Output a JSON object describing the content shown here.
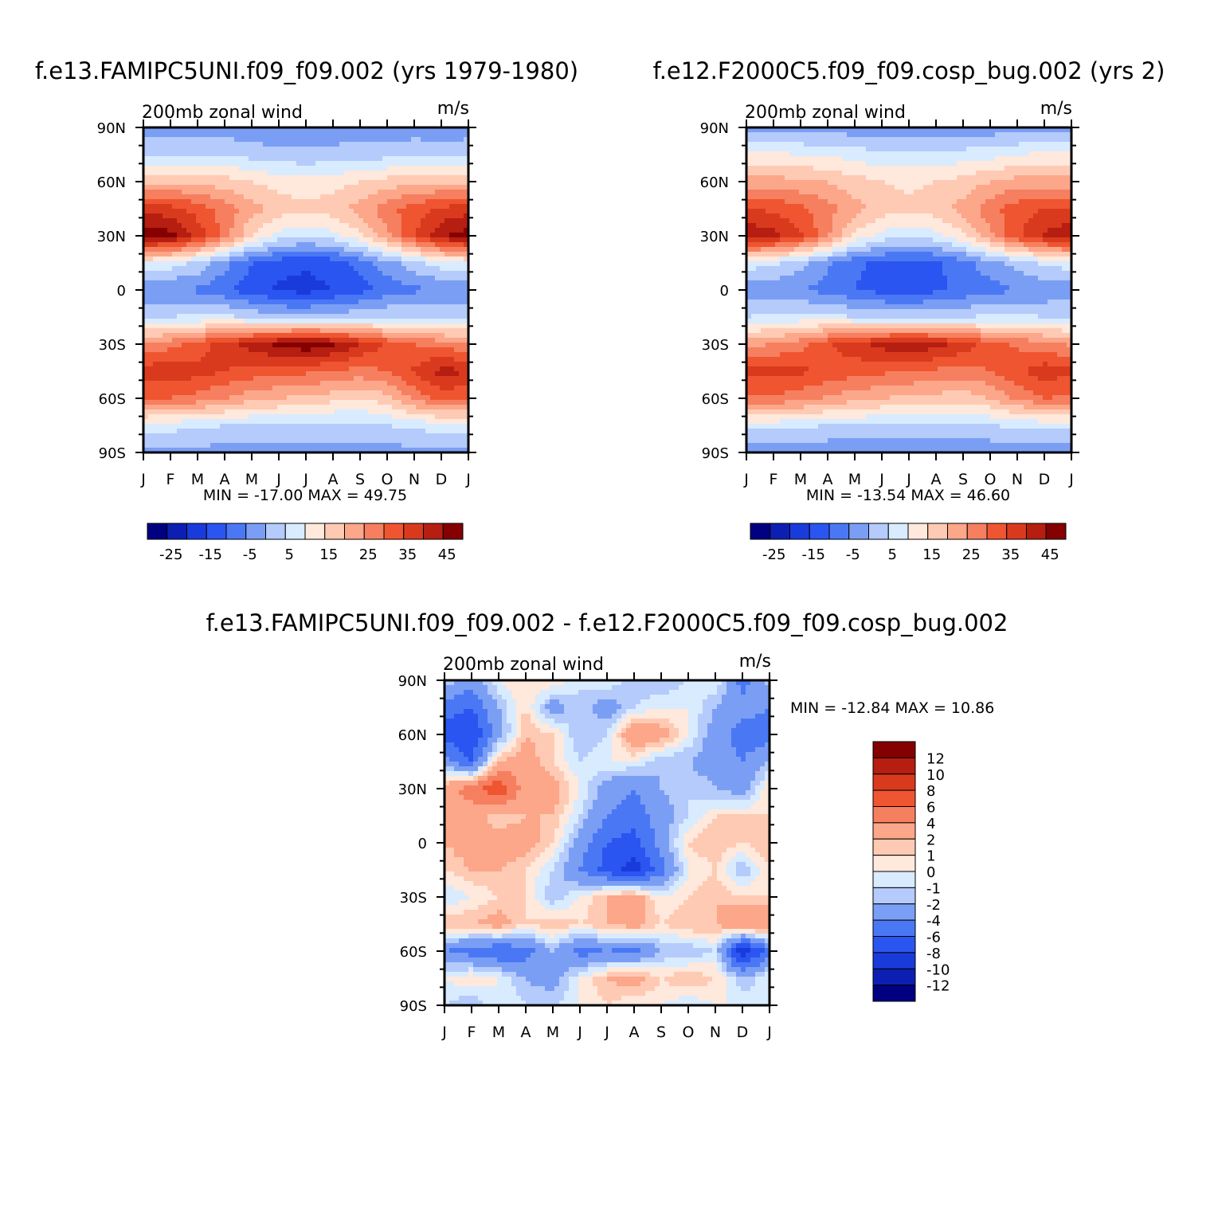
{
  "chart_data": [
    {
      "type": "heatmap",
      "title": "f.e13.FAMIPC5UNI.f09_f09.002 (yrs 1979-1980)",
      "subtitle": "200mb zonal wind",
      "units": "m/s",
      "x_labels": [
        "J",
        "F",
        "M",
        "A",
        "M",
        "J",
        "J",
        "A",
        "S",
        "O",
        "N",
        "D",
        "J"
      ],
      "y_labels": [
        "90N",
        "60N",
        "30N",
        "0",
        "30S",
        "60S",
        "90S"
      ],
      "min_max_text": "MIN = -17.00 MAX = 49.75",
      "color_levels": [
        -30,
        -25,
        -20,
        -15,
        -10,
        -5,
        0,
        5,
        10,
        15,
        20,
        25,
        30,
        35,
        40,
        45,
        50
      ],
      "colorbar_tick_labels": [
        "-25",
        "-15",
        "-5",
        "5",
        "15",
        "25",
        "35",
        "45"
      ],
      "lat": [
        90,
        75,
        60,
        45,
        30,
        15,
        0,
        -15,
        -30,
        -45,
        -60,
        -75,
        -90
      ],
      "month_index": [
        0,
        1,
        2,
        3,
        4,
        5,
        6,
        7,
        8,
        9,
        10,
        11,
        12
      ],
      "values": [
        [
          -3,
          -3,
          -3,
          -3,
          -4,
          -5,
          -4,
          -4,
          -3,
          -3,
          -3,
          -4,
          -3
        ],
        [
          4,
          4,
          5,
          5,
          3,
          2,
          1,
          2,
          3,
          3,
          4,
          4,
          4
        ],
        [
          19,
          19,
          18,
          17,
          15,
          13,
          12,
          13,
          15,
          17,
          18,
          19,
          19
        ],
        [
          38,
          37,
          33,
          28,
          22,
          18,
          16,
          18,
          22,
          28,
          33,
          36,
          38
        ],
        [
          48,
          47,
          38,
          28,
          15,
          8,
          6,
          8,
          14,
          24,
          34,
          44,
          48
        ],
        [
          10,
          8,
          4,
          -3,
          -10,
          -13,
          -14,
          -13,
          -8,
          -2,
          3,
          8,
          10
        ],
        [
          -4,
          -5,
          -6,
          -9,
          -13,
          -16,
          -17,
          -15,
          -12,
          -8,
          -6,
          -5,
          -4
        ],
        [
          4,
          5,
          6,
          6,
          4,
          2,
          2,
          3,
          4,
          5,
          5,
          4,
          4
        ],
        [
          26,
          28,
          32,
          38,
          42,
          47,
          49,
          46,
          40,
          34,
          30,
          28,
          26
        ],
        [
          38,
          38,
          37,
          35,
          33,
          32,
          31,
          30,
          28,
          30,
          36,
          42,
          40
        ],
        [
          30,
          30,
          28,
          25,
          22,
          20,
          19,
          17,
          15,
          18,
          26,
          32,
          30
        ],
        [
          8,
          7,
          6,
          5,
          4,
          4,
          3,
          3,
          4,
          5,
          6,
          8,
          8
        ],
        [
          -2,
          -2,
          -2,
          -2,
          -2,
          -2,
          -2,
          -2,
          -2,
          -2,
          -2,
          -2,
          -2
        ]
      ]
    },
    {
      "type": "heatmap",
      "title": "f.e12.F2000C5.f09_f09.cosp_bug.002 (yrs 2)",
      "subtitle": "200mb zonal wind",
      "units": "m/s",
      "x_labels": [
        "J",
        "F",
        "M",
        "A",
        "M",
        "J",
        "J",
        "A",
        "S",
        "O",
        "N",
        "D",
        "J"
      ],
      "y_labels": [
        "90N",
        "60N",
        "30N",
        "0",
        "30S",
        "60S",
        "90S"
      ],
      "min_max_text": "MIN = -13.54 MAX = 46.60",
      "color_levels": [
        -30,
        -25,
        -20,
        -15,
        -10,
        -5,
        0,
        5,
        10,
        15,
        20,
        25,
        30,
        35,
        40,
        45,
        50
      ],
      "colorbar_tick_labels": [
        "-25",
        "-15",
        "-5",
        "5",
        "15",
        "25",
        "35",
        "45"
      ],
      "lat": [
        90,
        75,
        60,
        45,
        30,
        15,
        0,
        -15,
        -30,
        -45,
        -60,
        -75,
        -90
      ],
      "month_index": [
        0,
        1,
        2,
        3,
        4,
        5,
        6,
        7,
        8,
        9,
        10,
        11,
        12
      ],
      "values": [
        [
          -3,
          -3,
          -3,
          -3,
          -3,
          -3,
          -3,
          -3,
          -3,
          -3,
          -3,
          -3,
          -3
        ],
        [
          11,
          11,
          10,
          9,
          8,
          6,
          6,
          6,
          7,
          8,
          10,
          11,
          11
        ],
        [
          22,
          22,
          21,
          20,
          17,
          15,
          14,
          15,
          17,
          20,
          22,
          22,
          22
        ],
        [
          35,
          34,
          31,
          27,
          22,
          18,
          16,
          18,
          22,
          28,
          33,
          35,
          35
        ],
        [
          44,
          42,
          36,
          26,
          14,
          8,
          6,
          8,
          14,
          24,
          34,
          41,
          44
        ],
        [
          8,
          6,
          2,
          -4,
          -9,
          -11,
          -12,
          -11,
          -7,
          -2,
          2,
          6,
          8
        ],
        [
          -3,
          -4,
          -5,
          -7,
          -10,
          -12,
          -13,
          -11,
          -9,
          -7,
          -5,
          -4,
          -3
        ],
        [
          5,
          6,
          7,
          7,
          5,
          4,
          4,
          4,
          5,
          6,
          6,
          5,
          5
        ],
        [
          24,
          25,
          28,
          34,
          38,
          42,
          44,
          42,
          38,
          32,
          29,
          27,
          24
        ],
        [
          36,
          37,
          36,
          34,
          32,
          31,
          30,
          29,
          28,
          30,
          34,
          38,
          36
        ],
        [
          29,
          29,
          27,
          24,
          22,
          20,
          19,
          18,
          17,
          20,
          26,
          30,
          29
        ],
        [
          7,
          7,
          6,
          5,
          5,
          4,
          4,
          4,
          4,
          5,
          6,
          7,
          7
        ],
        [
          -4,
          -4,
          -4,
          -4,
          -4,
          -4,
          -4,
          -4,
          -4,
          -4,
          -4,
          -4,
          -4
        ]
      ]
    },
    {
      "type": "heatmap",
      "title": "f.e13.FAMIPC5UNI.f09_f09.002 - f.e12.F2000C5.f09_f09.cosp_bug.002",
      "subtitle": "200mb zonal wind",
      "units": "m/s",
      "x_labels": [
        "J",
        "F",
        "M",
        "A",
        "M",
        "J",
        "J",
        "A",
        "S",
        "O",
        "N",
        "D",
        "J"
      ],
      "y_labels": [
        "90N",
        "60N",
        "30N",
        "0",
        "30S",
        "60S",
        "90S"
      ],
      "min_max_text": "MIN = -12.84 MAX = 10.86",
      "color_levels": [
        -14,
        -12,
        -10,
        -8,
        -6,
        -4,
        -2,
        -1,
        0,
        1,
        2,
        4,
        6,
        8,
        10,
        12,
        14
      ],
      "colorbar_tick_labels": [
        "12",
        "10",
        "8",
        "6",
        "4",
        "2",
        "1",
        "0",
        "-1",
        "-2",
        "-4",
        "-6",
        "-8",
        "-10",
        "-12"
      ],
      "lat": [
        90,
        75,
        60,
        45,
        30,
        15,
        0,
        -15,
        -30,
        -45,
        -60,
        -75,
        -90
      ],
      "month_index": [
        0,
        1,
        2,
        3,
        4,
        5,
        6,
        7,
        8,
        9,
        10,
        11,
        12
      ],
      "values": [
        [
          -1,
          -3,
          0,
          1,
          1,
          -1,
          0,
          -2,
          -2,
          -1,
          0,
          -5,
          -1
        ],
        [
          -5,
          -6,
          -2,
          1,
          -3,
          -1,
          -3,
          -1,
          0,
          0,
          -2,
          -3,
          -4
        ],
        [
          -7,
          -8,
          -3,
          2,
          1,
          -2,
          -1,
          4,
          3,
          0,
          -3,
          -5,
          -5
        ],
        [
          -3,
          -6,
          2,
          3,
          1,
          -1,
          0,
          0,
          -2,
          -2,
          -3,
          -4,
          -2
        ],
        [
          3,
          5,
          8,
          3,
          3,
          0,
          -3,
          -4,
          -2,
          -1,
          -2,
          -3,
          1
        ],
        [
          4,
          3,
          1,
          2,
          2,
          -1,
          -4,
          -5,
          -3,
          -1,
          1,
          1,
          1
        ],
        [
          2,
          3,
          3,
          3,
          1,
          -3,
          -6,
          -7,
          -3,
          1,
          2,
          1,
          2
        ],
        [
          1,
          2,
          2,
          1,
          -1,
          -4,
          -7,
          -9,
          -5,
          0,
          1,
          -2,
          1
        ],
        [
          -1,
          0,
          1,
          1,
          -2,
          0,
          2,
          3,
          0,
          1,
          2,
          1,
          1
        ],
        [
          2,
          2,
          3,
          1,
          2,
          1,
          2,
          3,
          1,
          2,
          2,
          4,
          4
        ],
        [
          -4,
          -5,
          -6,
          -5,
          -2,
          -5,
          -4,
          -5,
          -2,
          -2,
          -1,
          -10,
          -5
        ],
        [
          0,
          1,
          0,
          -2,
          -3,
          0,
          2,
          3,
          1,
          2,
          1,
          -2,
          0
        ],
        [
          -1,
          -2,
          0,
          -1,
          -1,
          0,
          1,
          0,
          0,
          -1,
          0,
          0,
          -1
        ]
      ]
    }
  ],
  "colors": {
    "full_field": [
      "#000080",
      "#0d1fb3",
      "#1a3bdb",
      "#2a55f0",
      "#4a78f5",
      "#7b9ef5",
      "#b4cbfb",
      "#d9ebff",
      "#ffe8dc",
      "#ffcab3",
      "#fca68a",
      "#f67f5f",
      "#ef5530",
      "#d93a1e",
      "#b51e10",
      "#850000"
    ],
    "difference": [
      "#000080",
      "#0d1fb3",
      "#1a3bdb",
      "#2a55f0",
      "#4a78f5",
      "#7b9ef5",
      "#b4cbfb",
      "#d9ebff",
      "#ffe8dc",
      "#ffcab3",
      "#fca68a",
      "#f67f5f",
      "#ef5530",
      "#d93a1e",
      "#b51e10",
      "#850000"
    ]
  }
}
